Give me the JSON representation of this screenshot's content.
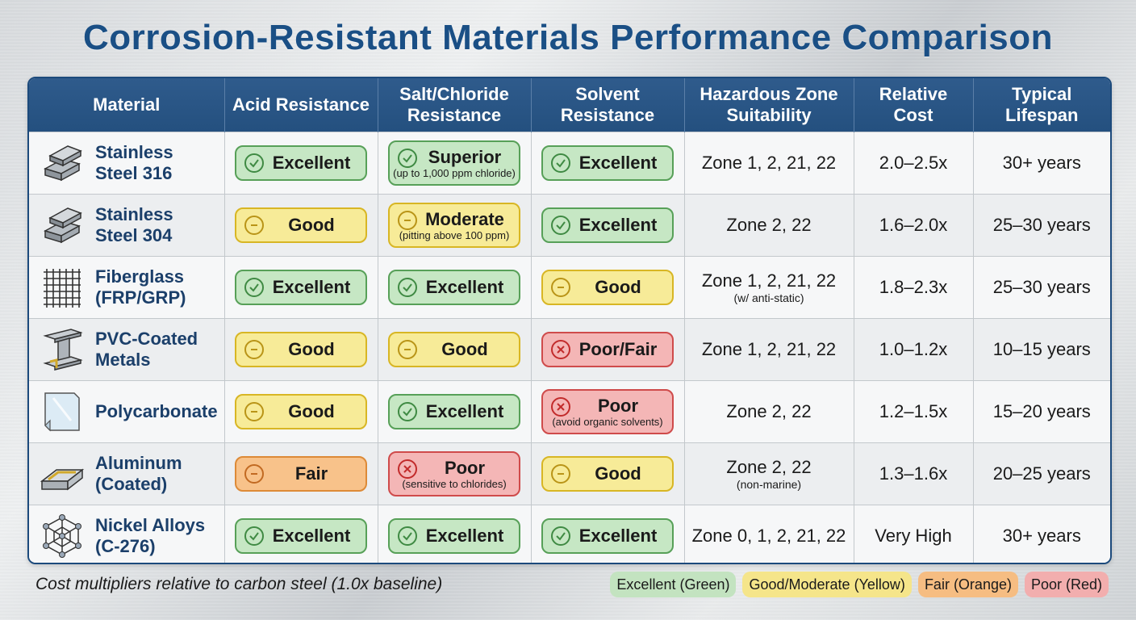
{
  "title": "Corrosion-Resistant Materials Performance Comparison",
  "headers": [
    "Material",
    "Acid Resistance",
    "Salt/Chloride Resistance",
    "Solvent Resistance",
    "Hazardous Zone Suitability",
    "Relative Cost",
    "Typical Lifespan"
  ],
  "rows": [
    {
      "material": "Stainless Steel 316",
      "icon": "steel-plate-icon",
      "acid": {
        "label": "Excellent",
        "sub": "",
        "level": "green"
      },
      "salt": {
        "label": "Superior",
        "sub": "(up to 1,000 ppm chloride)",
        "level": "green"
      },
      "solvent": {
        "label": "Excellent",
        "sub": "",
        "level": "green"
      },
      "zone": "Zone 1, 2, 21, 22",
      "zone_note": "",
      "cost": "2.0–2.5x",
      "lifespan": "30+ years"
    },
    {
      "material": "Stainless Steel 304",
      "icon": "steel-plate-icon",
      "acid": {
        "label": "Good",
        "sub": "",
        "level": "yellow"
      },
      "salt": {
        "label": "Moderate",
        "sub": "(pitting above 100 ppm)",
        "level": "yellow"
      },
      "solvent": {
        "label": "Excellent",
        "sub": "",
        "level": "green"
      },
      "zone": "Zone 2, 22",
      "zone_note": "",
      "cost": "1.6–2.0x",
      "lifespan": "25–30 years"
    },
    {
      "material": "Fiberglass (FRP/GRP)",
      "icon": "fiber-mesh-icon",
      "acid": {
        "label": "Excellent",
        "sub": "",
        "level": "green"
      },
      "salt": {
        "label": "Excellent",
        "sub": "",
        "level": "green"
      },
      "solvent": {
        "label": "Good",
        "sub": "",
        "level": "yellow"
      },
      "zone": "Zone 1, 2, 21, 22",
      "zone_note": "(w/ anti-static)",
      "cost": "1.8–2.3x",
      "lifespan": "25–30 years"
    },
    {
      "material": "PVC-Coated Metals",
      "icon": "i-beam-icon",
      "acid": {
        "label": "Good",
        "sub": "",
        "level": "yellow"
      },
      "salt": {
        "label": "Good",
        "sub": "",
        "level": "yellow"
      },
      "solvent": {
        "label": "Poor/Fair",
        "sub": "",
        "level": "red"
      },
      "zone": "Zone 1, 2, 21, 22",
      "zone_note": "",
      "cost": "1.0–1.2x",
      "lifespan": "10–15 years"
    },
    {
      "material": "Polycarbonate",
      "icon": "clear-sheet-icon",
      "acid": {
        "label": "Good",
        "sub": "",
        "level": "yellow"
      },
      "salt": {
        "label": "Excellent",
        "sub": "",
        "level": "green"
      },
      "solvent": {
        "label": "Poor",
        "sub": "(avoid organic solvents)",
        "level": "red"
      },
      "zone": "Zone 2, 22",
      "zone_note": "",
      "cost": "1.2–1.5x",
      "lifespan": "15–20 years"
    },
    {
      "material": "Aluminum (Coated)",
      "icon": "aluminum-bar-icon",
      "acid": {
        "label": "Fair",
        "sub": "",
        "level": "orange"
      },
      "salt": {
        "label": "Poor",
        "sub": "(sensitive to chlorides)",
        "level": "red"
      },
      "solvent": {
        "label": "Good",
        "sub": "",
        "level": "yellow"
      },
      "zone": "Zone 2, 22",
      "zone_note": "(non-marine)",
      "cost": "1.3–1.6x",
      "lifespan": "20–25 years"
    },
    {
      "material": "Nickel Alloys (C-276)",
      "icon": "lattice-icon",
      "acid": {
        "label": "Excellent",
        "sub": "",
        "level": "green"
      },
      "salt": {
        "label": "Excellent",
        "sub": "",
        "level": "green"
      },
      "solvent": {
        "label": "Excellent",
        "sub": "",
        "level": "green"
      },
      "zone": "Zone 0, 1, 2, 21, 22",
      "zone_note": "",
      "cost": "Very High",
      "lifespan": "30+ years"
    }
  ],
  "footnote": "Cost multipliers relative to carbon steel (1.0x baseline)",
  "legend": [
    {
      "label": "Excellent (Green)",
      "level": "green"
    },
    {
      "label": "Good/Moderate (Yellow)",
      "level": "yellow"
    },
    {
      "label": "Fair (Orange)",
      "level": "orange"
    },
    {
      "label": "Poor (Red)",
      "level": "red"
    }
  ],
  "colors": {
    "green": "#3f8a43",
    "yellow": "#b99417",
    "orange": "#c26a22",
    "red": "#c22b2b",
    "header": "#2a5585",
    "title": "#1a4f85"
  }
}
